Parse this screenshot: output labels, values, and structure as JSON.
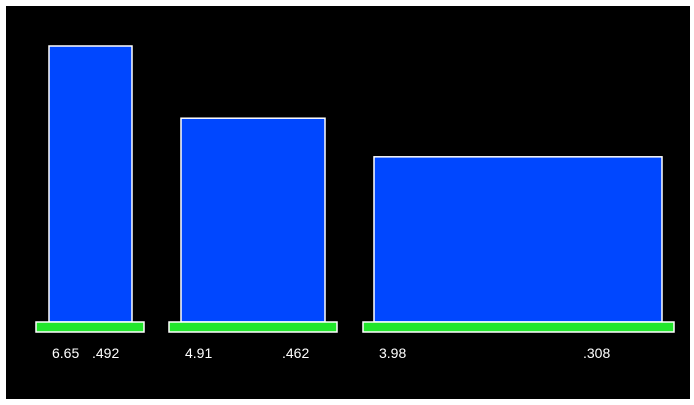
{
  "chart_data": {
    "type": "bar",
    "title": "",
    "xlabel": "",
    "ylabel": "",
    "grid": false,
    "legend": "none",
    "ylim": [
      0,
      7
    ],
    "bars": [
      {
        "height_value": 6.65,
        "width_value": 0.492,
        "height_label": "6.65",
        "width_label": ".492"
      },
      {
        "height_value": 4.91,
        "width_value": 0.462,
        "height_label": "4.91",
        "width_label": ".462"
      },
      {
        "height_value": 3.98,
        "width_value": 0.308,
        "height_label": "3.98",
        "width_label": ".308"
      }
    ],
    "colors": {
      "background": "#000000",
      "bar_fill": "#0047ff",
      "bar_stroke": "#ffffff",
      "baseline_fill": "#22e62c",
      "baseline_stroke": "#ffffff",
      "text": "#ffffff"
    }
  }
}
